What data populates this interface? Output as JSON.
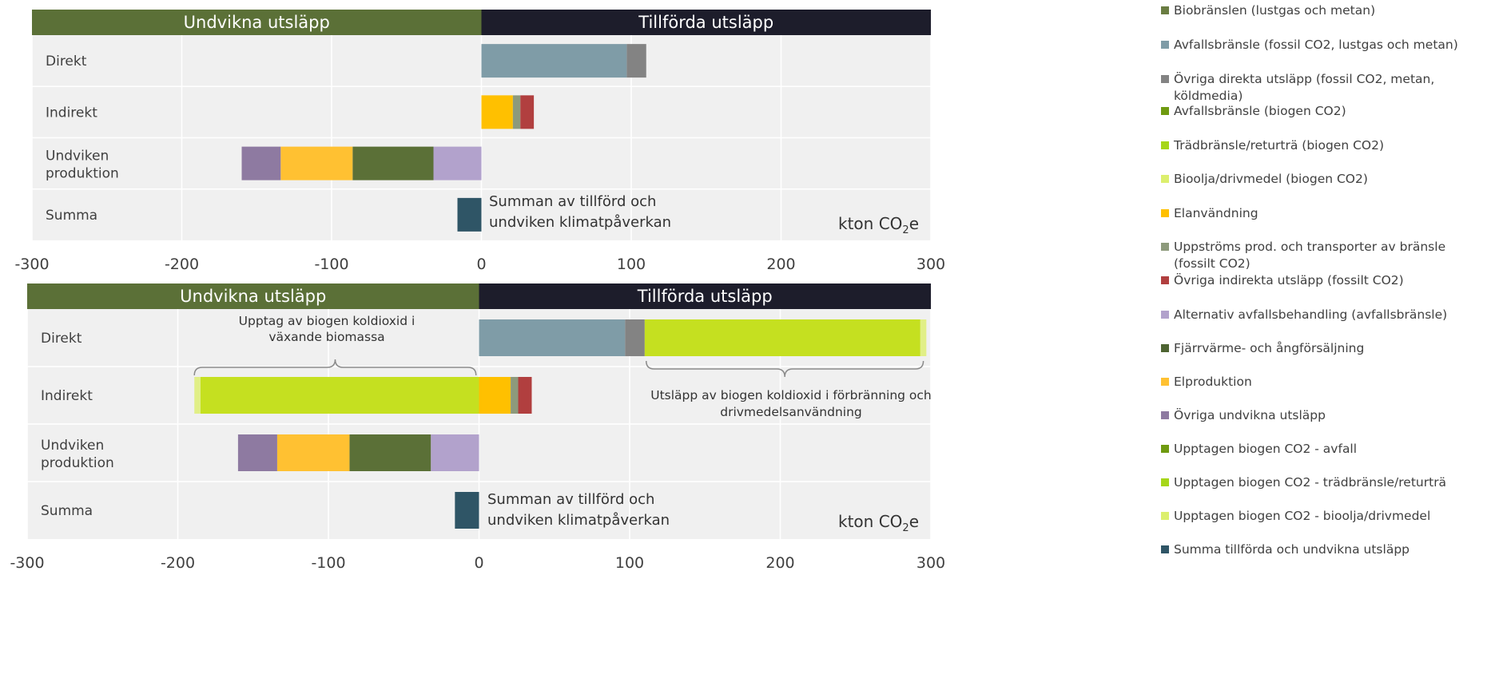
{
  "colors": {
    "header_avoided": "#5b7037",
    "header_added": "#1d1d2b",
    "plot_bg": "#f0f0f0",
    "gridline": "#ffffff",
    "text": "#404040"
  },
  "units_label": "kton CO₂e",
  "chart_data": [
    {
      "type": "bar",
      "orientation": "horizontal",
      "stacked": true,
      "header_left": "Undvikna utsläpp",
      "header_right": "Tillförda utsläpp",
      "categories": [
        "Direkt",
        "Indirekt",
        "Undviken produktion",
        "Summa"
      ],
      "xlim": [
        -300,
        300
      ],
      "xticks": [
        -300,
        -200,
        -100,
        0,
        100,
        200,
        300
      ],
      "xtick_labels": [
        "-300",
        "-200",
        "-100",
        "0",
        "100",
        "200",
        "300"
      ],
      "units": "kton CO₂e",
      "grid": true,
      "annotation": "Summan av tillförd och undviken klimatpåverkan",
      "series": [
        {
          "name": "Avfallsbränsle (fossil CO2, lustgas och metan)",
          "color": "#7f9ca7",
          "values": [
            97,
            0,
            0,
            0
          ]
        },
        {
          "name": "Övriga direkta utsläpp (fossil CO2, metan, köldmedia)",
          "color": "#838383",
          "values": [
            13,
            0,
            0,
            0
          ]
        },
        {
          "name": "Elanvändning",
          "color": "#ffc000",
          "values": [
            0,
            21,
            0,
            0
          ]
        },
        {
          "name": "Uppströms prod. och transporter av bränsle (fossilt CO2)",
          "color": "#8d9a7c",
          "values": [
            0,
            5,
            0,
            0
          ]
        },
        {
          "name": "Övriga indirekta utsläpp (fossilt CO2)",
          "color": "#b13f3f",
          "values": [
            0,
            9,
            0,
            0
          ]
        },
        {
          "name": "Alternativ avfallsbehandling (avfallsbränsle)",
          "color": "#b2a2cc",
          "values": [
            0,
            0,
            -32,
            0
          ]
        },
        {
          "name": "Fjärrvärme- och ångförsäljning",
          "color": "#5b7037",
          "values": [
            0,
            0,
            -54,
            0
          ]
        },
        {
          "name": "Elproduktion",
          "color": "#ffc132",
          "values": [
            0,
            0,
            -48,
            0
          ]
        },
        {
          "name": "Övriga undvikna utsläpp",
          "color": "#8e7aa1",
          "values": [
            0,
            0,
            -26,
            0
          ]
        },
        {
          "name": "Summa tillförda och undvikna utsläpp",
          "color": "#2f5566",
          "values": [
            0,
            0,
            0,
            -16
          ]
        }
      ]
    },
    {
      "type": "bar",
      "orientation": "horizontal",
      "stacked": true,
      "header_left": "Undvikna utsläpp",
      "header_right": "Tillförda utsläpp",
      "categories": [
        "Direkt",
        "Indirekt",
        "Undviken produktion",
        "Summa"
      ],
      "xlim": [
        -300,
        300
      ],
      "xticks": [
        -300,
        -200,
        -100,
        0,
        100,
        200,
        300
      ],
      "xtick_labels": [
        "-300",
        "-200",
        "-100",
        "0",
        "100",
        "200",
        "300"
      ],
      "units": "kton CO₂e",
      "grid": true,
      "annotation": "Summan av tillförd och undviken klimatpåverkan",
      "brace_left_label": "Upptag av biogen koldioxid i växande biomassa",
      "brace_right_label": "Utsläpp av biogen koldioxid i förbränning och drivmedelsanvändning",
      "brace_left_range": [
        -189,
        -2
      ],
      "brace_right_range": [
        111,
        295
      ],
      "series": [
        {
          "name": "Avfallsbränsle (fossil CO2, lustgas och metan)",
          "color": "#7f9ca7",
          "values": [
            97,
            0,
            0,
            0
          ]
        },
        {
          "name": "Övriga direkta utsläpp (fossil CO2, metan, köldmedia)",
          "color": "#838383",
          "values": [
            13,
            0,
            0,
            0
          ]
        },
        {
          "name": "Trädbränsle/returträ (biogen CO2)",
          "color": "#c5e020",
          "values": [
            183,
            0,
            0,
            0
          ]
        },
        {
          "name": "Bioolja/drivmedel (biogen CO2)",
          "color": "#e1ef87",
          "values": [
            4,
            0,
            0,
            0
          ]
        },
        {
          "name": "Elanvändning",
          "color": "#ffc000",
          "values": [
            0,
            21,
            0,
            0
          ]
        },
        {
          "name": "Uppströms prod. och transporter av bränsle (fossilt CO2)",
          "color": "#8d9a7c",
          "values": [
            0,
            5,
            0,
            0
          ]
        },
        {
          "name": "Övriga indirekta utsläpp (fossilt CO2)",
          "color": "#b13f3f",
          "values": [
            0,
            9,
            0,
            0
          ]
        },
        {
          "name": "Upptagen biogen CO2 - trädbränsle/returträ",
          "color": "#c5e020",
          "values": [
            0,
            -185,
            0,
            0
          ]
        },
        {
          "name": "Upptagen biogen CO2 - bioolja/drivmedel",
          "color": "#e1ef87",
          "values": [
            0,
            -4,
            0,
            0
          ]
        },
        {
          "name": "Alternativ avfallsbehandling (avfallsbränsle)",
          "color": "#b2a2cc",
          "values": [
            0,
            0,
            -32,
            0
          ]
        },
        {
          "name": "Fjärrvärme- och ångförsäljning",
          "color": "#5b7037",
          "values": [
            0,
            0,
            -54,
            0
          ]
        },
        {
          "name": "Elproduktion",
          "color": "#ffc132",
          "values": [
            0,
            0,
            -48,
            0
          ]
        },
        {
          "name": "Övriga undvikna utsläpp",
          "color": "#8e7aa1",
          "values": [
            0,
            0,
            -26,
            0
          ]
        },
        {
          "name": "Summa tillförda och undvikna utsläpp",
          "color": "#2f5566",
          "values": [
            0,
            0,
            0,
            -16
          ]
        }
      ]
    }
  ],
  "legend": [
    {
      "label": "Biobränslen (lustgas och metan)",
      "color": "#6a7d42"
    },
    {
      "label": "Avfallsbränsle (fossil CO2, lustgas och metan)",
      "color": "#7f9ca7"
    },
    {
      "label": "Övriga direkta utsläpp (fossil CO2, metan, köldmedia)",
      "color": "#838383"
    },
    {
      "label": "Avfallsbränsle (biogen CO2)",
      "color": "#6f9a10"
    },
    {
      "label": "Trädbränsle/returträ (biogen CO2)",
      "color": "#a6d61a"
    },
    {
      "label": "Bioolja/drivmedel (biogen CO2)",
      "color": "#dcef6e"
    },
    {
      "label": "Elanvändning",
      "color": "#ffc000"
    },
    {
      "label": "Uppströms prod. och transporter av bränsle (fossilt CO2)",
      "color": "#8d9a7c"
    },
    {
      "label": "Övriga indirekta utsläpp (fossilt CO2)",
      "color": "#b13f3f"
    },
    {
      "label": "Alternativ avfallsbehandling (avfallsbränsle)",
      "color": "#b2a2cc"
    },
    {
      "label": "Fjärrvärme- och ångförsäljning",
      "color": "#4e6432"
    },
    {
      "label": "Elproduktion",
      "color": "#ffc132"
    },
    {
      "label": "Övriga undvikna utsläpp",
      "color": "#8e7aa1"
    },
    {
      "label": "Upptagen biogen CO2 - avfall",
      "color": "#6f9a10"
    },
    {
      "label": "Upptagen biogen CO2 - trädbränsle/returträ",
      "color": "#a6d61a"
    },
    {
      "label": "Upptagen biogen CO2 - bioolja/drivmedel",
      "color": "#dcef6e"
    },
    {
      "label": "Summa tillförda och undvikna utsläpp",
      "color": "#2f5566"
    }
  ]
}
